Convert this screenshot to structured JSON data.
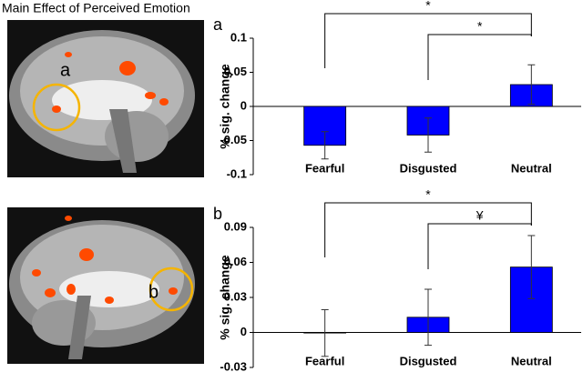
{
  "title": "Main Effect of Perceived Emotion",
  "chart_data": [
    {
      "type": "bar",
      "panel_label": "a",
      "image_label": "a",
      "ylabel": "% sig. change",
      "categories": [
        "Fearful",
        "Disgusted",
        "Neutral"
      ],
      "values": [
        -0.057,
        -0.042,
        0.032
      ],
      "errors": [
        0.02,
        0.025,
        0.029
      ],
      "color": "#0000ff",
      "ylim": [
        -0.1,
        0.1
      ],
      "yticks": [
        -0.1,
        -0.05,
        0,
        0.05,
        0.1
      ],
      "comparisons": [
        {
          "label": "*",
          "between": [
            "Fearful",
            "Neutral"
          ]
        },
        {
          "label": "*",
          "between": [
            "Disgusted",
            "Neutral"
          ]
        }
      ]
    },
    {
      "type": "bar",
      "panel_label": "b",
      "image_label": "b",
      "ylabel": "% sig. change",
      "categories": [
        "Fearful",
        "Disgusted",
        "Neutral"
      ],
      "values": [
        -0.0005,
        0.013,
        0.056
      ],
      "errors": [
        0.02,
        0.024,
        0.027
      ],
      "color": "#0000ff",
      "ylim": [
        -0.03,
        0.09
      ],
      "yticks": [
        -0.03,
        0,
        0.03,
        0.06,
        0.09
      ],
      "comparisons": [
        {
          "label": "*",
          "between": [
            "Fearful",
            "Neutral"
          ]
        },
        {
          "label": "¥",
          "between": [
            "Disgusted",
            "Neutral"
          ]
        }
      ]
    }
  ]
}
